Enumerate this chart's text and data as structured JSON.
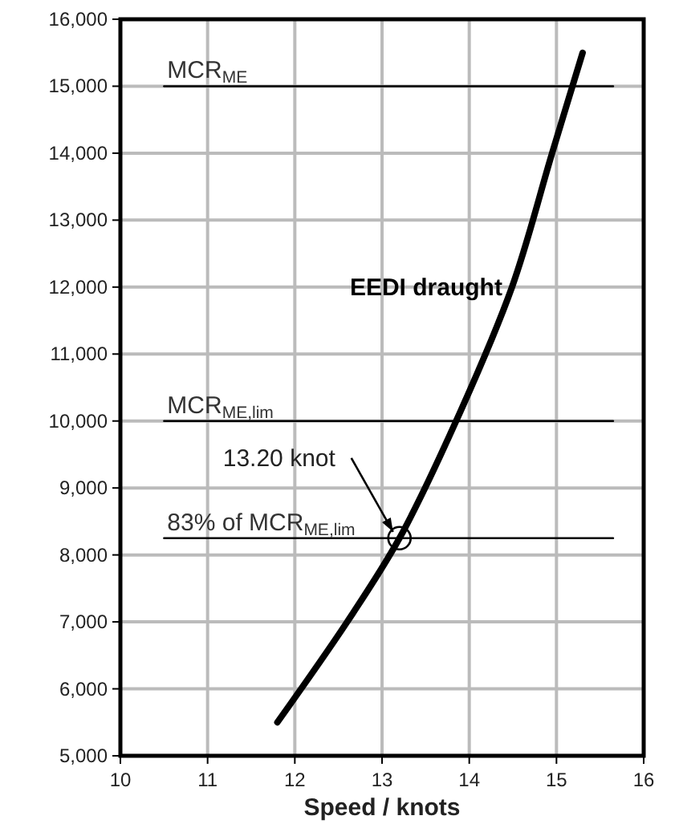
{
  "chart_data": {
    "type": "line",
    "xlabel": "Speed / knots",
    "xlim": [
      10,
      16
    ],
    "xticks": [
      10,
      11,
      12,
      13,
      14,
      15,
      16
    ],
    "ylim": [
      5000,
      16000
    ],
    "yticks": [
      {
        "value": 5000,
        "label": "5,000"
      },
      {
        "value": 6000,
        "label": "6,000"
      },
      {
        "value": 7000,
        "label": "7,000"
      },
      {
        "value": 8000,
        "label": "8,000"
      },
      {
        "value": 9000,
        "label": "9,000"
      },
      {
        "value": 10000,
        "label": "10,000"
      },
      {
        "value": 11000,
        "label": "11,000"
      },
      {
        "value": 12000,
        "label": "12,000"
      },
      {
        "value": 13000,
        "label": "13,000"
      },
      {
        "value": 14000,
        "label": "14,000"
      },
      {
        "value": 15000,
        "label": "15,000"
      },
      {
        "value": 16000,
        "label": "16,000"
      }
    ],
    "grid": true,
    "legend": "top left",
    "series": [
      {
        "name": "EEDI draught",
        "color": "#000000",
        "x": [
          11.8,
          12.6,
          13.2,
          13.85,
          14.49,
          14.95,
          15.3
        ],
        "values": [
          5500,
          7000,
          8250,
          10000,
          12000,
          14000,
          15500
        ]
      },
      {
        "name": "MCR$_{ME}$",
        "color": "#000000",
        "x": [
          10.5,
          15.65
        ],
        "values": [
          15000,
          15000
        ]
      },
      {
        "name": "MCR$_{ME,lim}$",
        "color": "#000000",
        "x": [
          10.5,
          15.65
        ],
        "values": [
          10000,
          10000
        ]
      },
      {
        "name": "83% of MCR$_{ME,lim}$",
        "color": "#000000",
        "x": [
          10.5,
          15.65
        ],
        "values": [
          8250,
          8250
        ]
      },
      {
        "type": "scatter",
        "marker": "circle",
        "color": "#000000",
        "x": [
          13.2
        ],
        "values": [
          8250
        ]
      }
    ],
    "annotations": [
      {
        "text": "13.20 knot",
        "x": 13.2,
        "y": 8250
      }
    ]
  }
}
